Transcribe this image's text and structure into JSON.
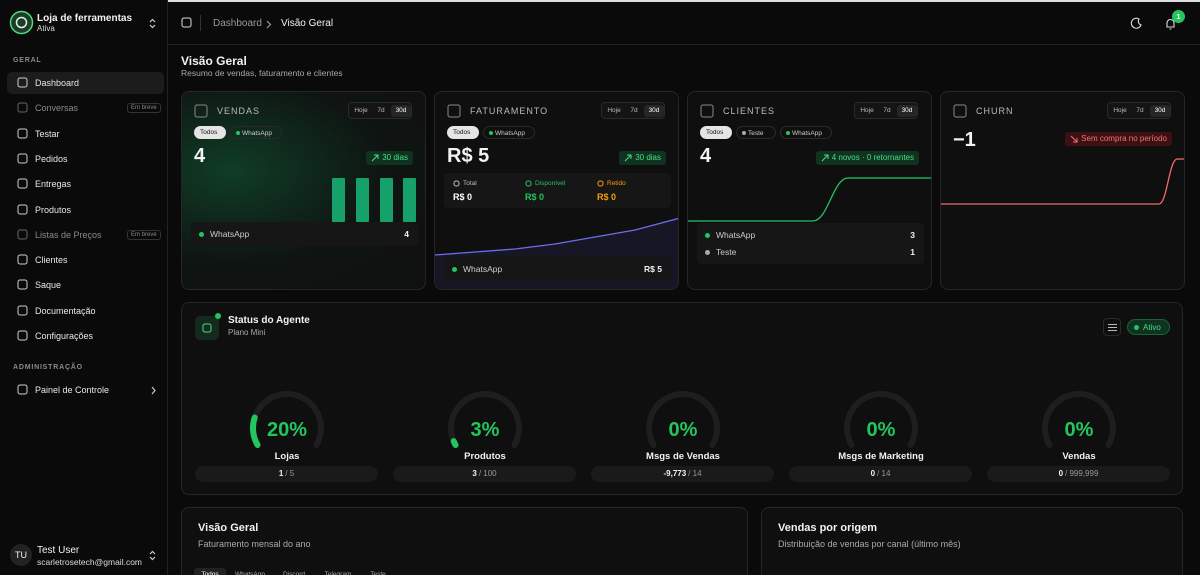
{
  "sidebar": {
    "store": {
      "name": "Loja de ferramentas",
      "status": "Ativa"
    },
    "sections": [
      {
        "title": "GERAL",
        "items": [
          {
            "label": "Dashboard"
          },
          {
            "label": "Conversas",
            "badge": "Em breve"
          },
          {
            "label": "Testar"
          },
          {
            "label": "Pedidos"
          },
          {
            "label": "Entregas"
          },
          {
            "label": "Produtos"
          },
          {
            "label": "Listas de Preços",
            "badge": "Em breve"
          },
          {
            "label": "Clientes"
          },
          {
            "label": "Saque"
          },
          {
            "label": "Documentação"
          },
          {
            "label": "Configurações"
          }
        ]
      },
      {
        "title": "ADMINISTRAÇÃO",
        "items": [
          {
            "label": "Painel de Controle"
          }
        ]
      }
    ],
    "user": {
      "initials": "TU",
      "name": "Test User",
      "email": "scarletrosetech@gmail.com"
    }
  },
  "header": {
    "breadcrumb": [
      "Dashboard",
      "Visão Geral"
    ],
    "notifications": 1
  },
  "page": {
    "title": "Visão Geral",
    "subtitle": "Resumo de vendas, faturamento e clientes"
  },
  "cards": [
    {
      "title": "VENDAS",
      "ranges": [
        "Hoje",
        "7d",
        "30d"
      ],
      "filters": [
        "Todos",
        "WhatsApp"
      ],
      "value": "4",
      "badge": "30 dias",
      "rows": [
        {
          "label": "WhatsApp",
          "value": "4"
        }
      ]
    },
    {
      "title": "FATURAMENTO",
      "ranges": [
        "Hoje",
        "7d",
        "30d"
      ],
      "filters": [
        "Todos",
        "WhatsApp"
      ],
      "value": "R$ 5",
      "badge": "30 dias",
      "breakdown": [
        {
          "label": "Total",
          "value": "R$ 0"
        },
        {
          "label": "Disponível",
          "value": "R$ 0"
        },
        {
          "label": "Retido",
          "value": "R$ 0"
        }
      ],
      "rows": [
        {
          "label": "WhatsApp",
          "value": "R$ 5"
        }
      ]
    },
    {
      "title": "CLIENTES",
      "ranges": [
        "Hoje",
        "7d",
        "30d"
      ],
      "filters": [
        "Todos",
        "Teste",
        "WhatsApp"
      ],
      "value": "4",
      "badge": "4 novos · 0 retornantes",
      "rows": [
        {
          "label": "WhatsApp",
          "value": "3"
        },
        {
          "label": "Teste",
          "value": "1"
        }
      ]
    },
    {
      "title": "CHURN",
      "ranges": [
        "Hoje",
        "7d",
        "30d"
      ],
      "value": "−1",
      "badge": "Sem compra no período"
    }
  ],
  "agent": {
    "title": "Status do Agente",
    "plan": "Plano Mini",
    "status": "Ativo",
    "gauges": {
      "names": [
        "Lojas",
        "Produtos",
        "Msgs de Vendas",
        "Msgs de Marketing",
        "Vendas"
      ],
      "values": [
        20,
        3,
        0,
        0,
        0
      ],
      "value_labels": [
        "20%",
        "3%",
        "0%",
        "0%",
        "0%"
      ],
      "used": [
        "1",
        "3",
        "-9,773",
        "0",
        "0"
      ],
      "limits": [
        "/ 5",
        "/ 100",
        "/ 14",
        "/ 14",
        "/ 999,999"
      ]
    }
  },
  "panels": [
    {
      "title": "Visão Geral",
      "subtitle": "Faturamento mensal do ano",
      "tabs": [
        "Todos",
        "WhatsApp",
        "Discord",
        "Telegram",
        "Teste"
      ]
    },
    {
      "title": "Vendas por origem",
      "subtitle": "Distribuição de vendas por canal (último mês)"
    }
  ]
}
